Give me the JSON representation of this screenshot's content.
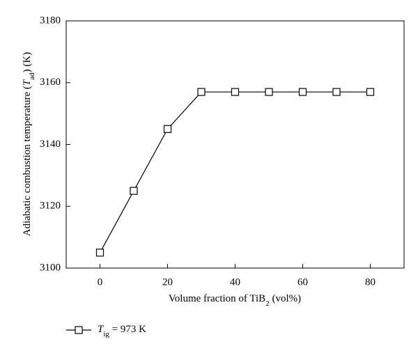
{
  "chart_data": {
    "type": "line",
    "ylabel": [
      "Adiabatic combustion temperature (",
      "T",
      "ad",
      ") (K)"
    ],
    "xlabel": [
      "Volume fraction of TiB",
      "2",
      " (vol%)"
    ],
    "x": [
      0,
      10,
      20,
      30,
      40,
      50,
      60,
      70,
      80
    ],
    "series": [
      {
        "name": [
          "T",
          "ig",
          " = 973 K"
        ],
        "color": "#000000",
        "marker": "square",
        "values": [
          3105,
          3125,
          3145,
          3157,
          3157,
          3157,
          3157,
          3157,
          3157
        ]
      }
    ],
    "xlim": [
      -10,
      90
    ],
    "ylim": [
      3100,
      3180
    ],
    "xticks": [
      0,
      20,
      40,
      60,
      80
    ],
    "yticks": [
      3100,
      3120,
      3140,
      3160,
      3180
    ],
    "legend": "bottom-left"
  }
}
